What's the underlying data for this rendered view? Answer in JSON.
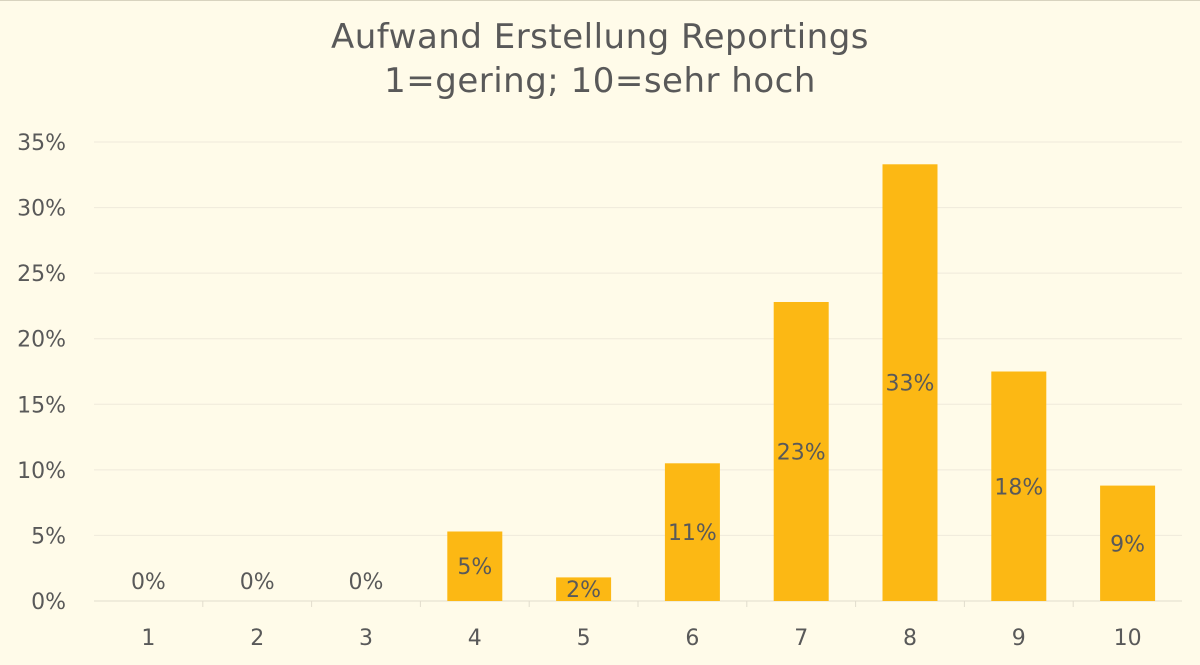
{
  "chart_data": {
    "type": "bar",
    "title": "Aufwand Erstellung Reportings",
    "subtitle": "1=gering; 10=sehr hoch",
    "xlabel": "",
    "ylabel": "",
    "categories": [
      "1",
      "2",
      "3",
      "4",
      "5",
      "6",
      "7",
      "8",
      "9",
      "10"
    ],
    "values": [
      0,
      0,
      0,
      5.3,
      1.8,
      10.5,
      22.8,
      33.3,
      17.5,
      8.8
    ],
    "data_labels": [
      "0%",
      "0%",
      "0%",
      "5%",
      "2%",
      "11%",
      "23%",
      "33%",
      "18%",
      "9%"
    ],
    "ylim": [
      0,
      35
    ],
    "yticks": [
      0,
      5,
      10,
      15,
      20,
      25,
      30,
      35
    ],
    "ytick_labels": [
      "0%",
      "5%",
      "10%",
      "15%",
      "20%",
      "25%",
      "30%",
      "35%"
    ],
    "grid": true,
    "legend": "none",
    "bar_color": "#fcb814",
    "background_color": "#fffbe9",
    "text_color": "#595959"
  }
}
